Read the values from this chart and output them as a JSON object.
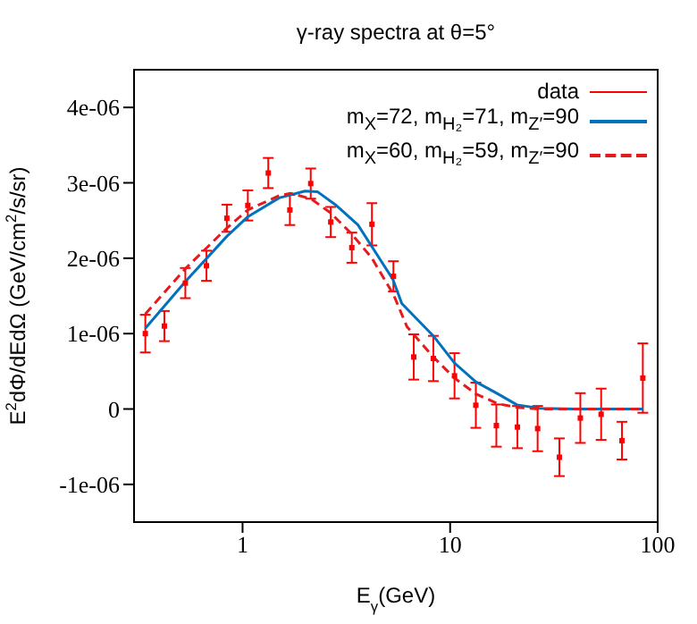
{
  "chart_data": {
    "type": "line",
    "title": "γ-ray spectra at θ=5°",
    "xlabel": "E$_{γ}$(GeV)",
    "ylabel": "E$^{2}$dΦ/dEdΩ (GeV/cm$^{2}$/s/sr)",
    "log": "x",
    "xlim": [
      0.3,
      100
    ],
    "xticks": [
      1,
      10,
      100
    ],
    "ylim": [
      -1.5e-06,
      4.5e-06
    ],
    "yticks": [
      {
        "value": -1e-06,
        "label": "-1e-06"
      },
      {
        "value": 0,
        "label": "0"
      },
      {
        "value": 1e-06,
        "label": "1e-06"
      },
      {
        "value": 2e-06,
        "label": "2e-06"
      },
      {
        "value": 3e-06,
        "label": "3e-06"
      },
      {
        "value": 4e-06,
        "label": "4e-06"
      }
    ],
    "grid": false,
    "legend": "top right",
    "series": [
      {
        "name": "data",
        "type": "scatter",
        "marker": "square",
        "color": "#ff0000",
        "x": [
          0.34,
          0.42,
          0.53,
          0.67,
          0.84,
          1.06,
          1.33,
          1.69,
          2.13,
          2.66,
          3.36,
          4.2,
          5.33,
          6.68,
          8.3,
          10.5,
          13.3,
          16.7,
          21.1,
          26.4,
          33.6,
          42.4,
          53.4,
          67.3,
          84.8
        ],
        "values": [
          1e-06,
          1.1e-06,
          1.67e-06,
          1.9e-06,
          2.53e-06,
          2.7e-06,
          3.13e-06,
          2.64e-06,
          2.99e-06,
          2.48e-06,
          2.14e-06,
          2.45e-06,
          1.76e-06,
          6.9e-07,
          6.7e-07,
          4.4e-07,
          5e-08,
          -2.2e-07,
          -2.4e-07,
          -2.6e-07,
          -6.4e-07,
          -1.2e-07,
          -7e-08,
          -4.2e-07,
          4.1e-07
        ],
        "errors": [
          2.5e-07,
          2e-07,
          2e-07,
          2e-07,
          1.8e-07,
          2e-07,
          2e-07,
          2e-07,
          2e-07,
          2e-07,
          2e-07,
          2.8e-07,
          2e-07,
          3e-07,
          3e-07,
          3e-07,
          3e-07,
          2.8e-07,
          2.8e-07,
          3e-07,
          2.5e-07,
          3.3e-07,
          3.4e-07,
          2.5e-07,
          4.6e-07
        ]
      },
      {
        "name": "m$_{X}$=72, m$_{H₂}$=71, m$_{Z′}$=90",
        "line_style": "solid",
        "color": "#0072bd",
        "x": [
          0.34,
          0.53,
          0.84,
          1.06,
          1.5,
          2.0,
          2.3,
          2.8,
          3.6,
          5.3,
          5.85,
          8.3,
          10.5,
          13.3,
          17,
          21,
          27,
          40,
          85
        ],
        "values": [
          1.07e-06,
          1.69e-06,
          2.29e-06,
          2.55e-06,
          2.8e-06,
          2.89e-06,
          2.88e-06,
          2.71e-06,
          2.44e-06,
          1.72e-06,
          1.4e-06,
          9.7e-07,
          6.1e-07,
          3.6e-07,
          2e-07,
          5.5e-08,
          1e-08,
          0,
          0
        ]
      },
      {
        "name": "m$_{X}$=60, m$_{H₂}$=59, m$_{Z′}$=90",
        "line_style": "dashed",
        "color": "#e41a1c",
        "x": [
          0.34,
          0.53,
          0.84,
          1.06,
          1.5,
          1.7,
          2.13,
          2.66,
          3.36,
          4.2,
          5.33,
          6.2,
          8.3,
          10.5,
          13.3,
          17,
          21,
          27,
          85
        ],
        "values": [
          1.26e-06,
          1.86e-06,
          2.4e-06,
          2.64e-06,
          2.83e-06,
          2.86e-06,
          2.79e-06,
          2.6e-06,
          2.32e-06,
          2e-06,
          1.52e-06,
          1.09e-06,
          6.9e-07,
          4.1e-07,
          2e-07,
          7e-08,
          2e-08,
          0,
          0
        ]
      }
    ]
  }
}
